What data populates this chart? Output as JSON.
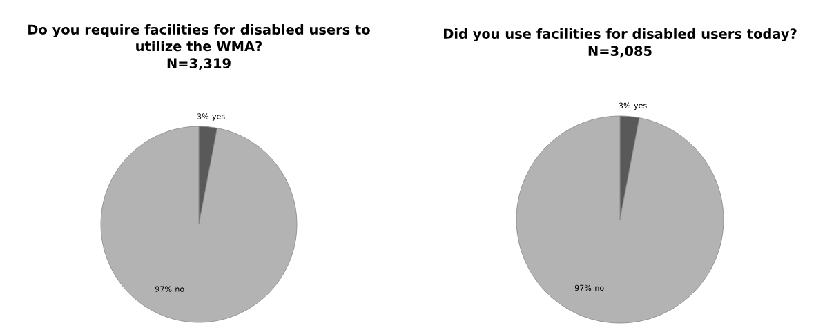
{
  "chart_data": [
    {
      "type": "pie",
      "title": "Do you require facilities for disabled users to utilize the WMA?",
      "subtitle": "N=3,319",
      "categories": [
        "yes",
        "no"
      ],
      "values": [
        3,
        97
      ],
      "colors": [
        "#595959",
        "#b3b3b3"
      ],
      "data_labels": true,
      "value_labels": [
        "3%",
        "97%"
      ]
    },
    {
      "type": "pie",
      "title": "Did you use facilities for disabled users today?",
      "subtitle": "N=3,085",
      "categories": [
        "yes",
        "no"
      ],
      "values": [
        3,
        97
      ],
      "colors": [
        "#595959",
        "#b3b3b3"
      ],
      "data_labels": true,
      "value_labels": [
        "3%",
        "97%"
      ]
    }
  ]
}
